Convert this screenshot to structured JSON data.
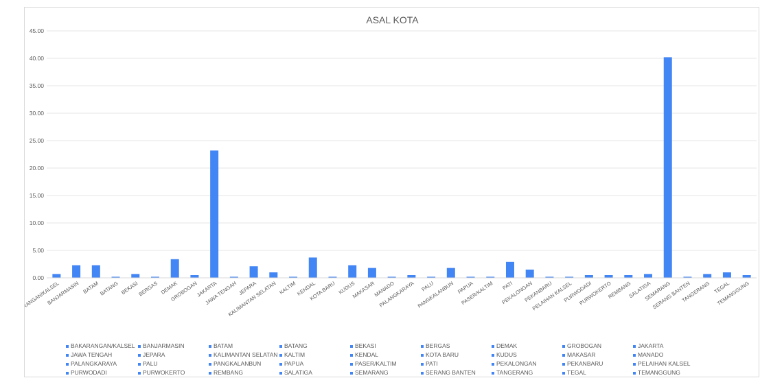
{
  "chart_data": {
    "type": "bar",
    "title": "ASAL KOTA",
    "xlabel": "",
    "ylabel": "",
    "ylim": [
      0,
      45
    ],
    "ytick_labels": [
      "0.00",
      "5.00",
      "10.00",
      "15.00",
      "20.00",
      "25.00",
      "30.00",
      "35.00",
      "40.00",
      "45.00"
    ],
    "grid": true,
    "legend_position": "bottom",
    "bar_color": "#4285F4",
    "grid_color": "#e6e6e6",
    "text_color": "#595959",
    "categories": [
      "BAKARANGAN/KALSEL",
      "BANJARMASIN",
      "BATAM",
      "BATANG",
      "BEKASI",
      "BERGAS",
      "DEMAK",
      "GROBOGAN",
      "JAKARTA",
      "JAWA TENGAH",
      "JEPARA",
      "KALIMANTAN SELATAN",
      "KALTIM",
      "KENDAL",
      "KOTA BARU",
      "KUDUS",
      "MAKASAR",
      "MANADO",
      "PALANGKARAYA",
      "PALU",
      "PANGKALANBUN",
      "PAPUA",
      "PASER/KALTIM",
      "PATI",
      "PEKALONGAN",
      "PEKANBARU",
      "PELAIHAN KALSEL",
      "PURWODADI",
      "PURWOKERTO",
      "REMBANG",
      "SALATIGA",
      "SEMARANG",
      "SERANG BANTEN",
      "TANGERANG",
      "TEGAL",
      "TEMANGGUNG"
    ],
    "values": [
      0.7,
      2.3,
      2.3,
      0.2,
      0.7,
      0.2,
      3.4,
      0.5,
      23.2,
      0.2,
      2.1,
      1.0,
      0.2,
      3.7,
      0.2,
      2.3,
      1.8,
      0.2,
      0.5,
      0.2,
      1.8,
      0.2,
      0.2,
      2.9,
      1.5,
      0.2,
      0.2,
      0.5,
      0.5,
      0.5,
      0.7,
      40.2,
      0.2,
      0.7,
      1.0,
      0.5
    ],
    "legend_entries": [
      "BAKARANGAN/KALSEL",
      "BANJARMASIN",
      "BATAM",
      "BATANG",
      "BEKASI",
      "BERGAS",
      "DEMAK",
      "GROBOGAN",
      "JAKARTA",
      "JAWA TENGAH",
      "JEPARA",
      "KALIMANTAN SELATAN",
      "KALTIM",
      "KENDAL",
      "KOTA BARU",
      "KUDUS",
      "MAKASAR",
      "MANADO",
      "PALANGKARAYA",
      "PALU",
      "PANGKALANBUN",
      "PAPUA",
      "PASER/KALTIM",
      "PATI",
      "PEKALONGAN",
      "PEKANBARU",
      "PELAIHAN KALSEL",
      "PURWODADI",
      "PURWOKERTO",
      "REMBANG",
      "SALATIGA",
      "SEMARANG",
      "SERANG BANTEN",
      "TANGERANG",
      "TEGAL",
      "TEMANGGUNG"
    ]
  }
}
